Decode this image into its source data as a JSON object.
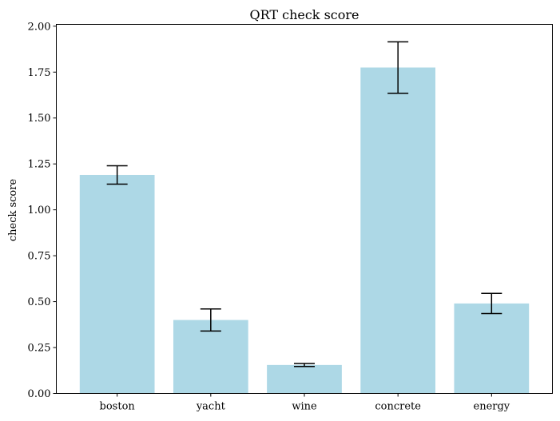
{
  "chart_data": {
    "type": "bar",
    "title": "QRT check score",
    "xlabel": "",
    "ylabel": "check score",
    "categories": [
      "boston",
      "yacht",
      "wine",
      "concrete",
      "energy"
    ],
    "values": [
      1.19,
      0.4,
      0.155,
      1.775,
      0.49
    ],
    "errors": [
      0.05,
      0.06,
      0.008,
      0.14,
      0.055
    ],
    "ylim": [
      0,
      2.0
    ],
    "yticks": [
      0.0,
      0.25,
      0.5,
      0.75,
      1.0,
      1.25,
      1.5,
      1.75,
      2.0
    ],
    "ytick_labels": [
      "0.00",
      "0.25",
      "0.50",
      "0.75",
      "1.00",
      "1.25",
      "1.50",
      "1.75",
      "2.00"
    ],
    "bar_color": "#add8e6",
    "error_color": "#000000",
    "grid": false,
    "legend": "none"
  }
}
